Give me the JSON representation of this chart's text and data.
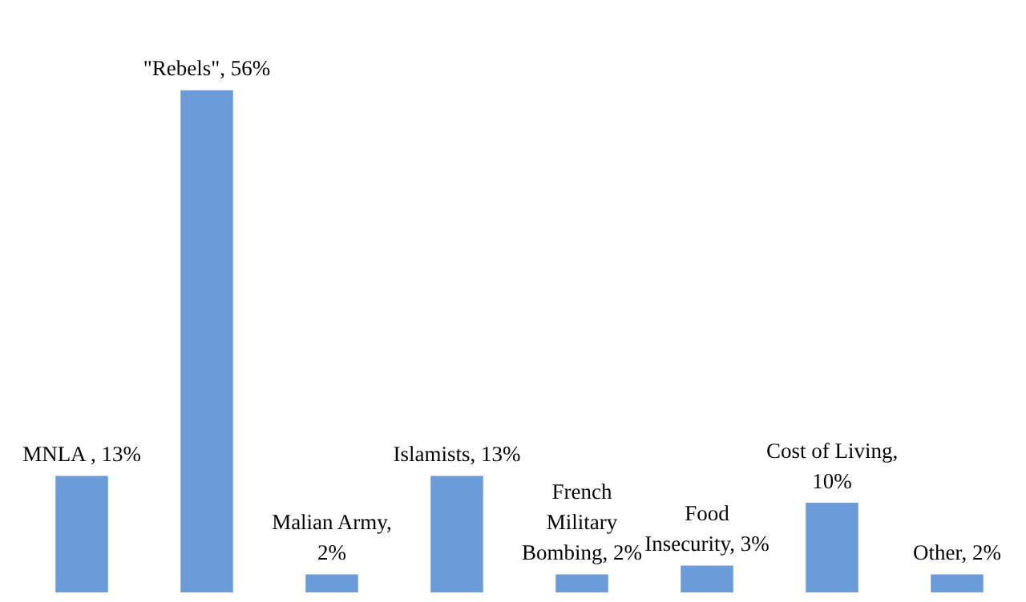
{
  "chart_data": {
    "type": "bar",
    "categories": [
      null,
      null,
      null,
      null,
      null,
      null,
      null,
      null
    ],
    "values": [
      13,
      56,
      2,
      13,
      2,
      3,
      10,
      2
    ],
    "value_labels": [
      "MNLA , 13%",
      "\"Rebels\", 56%",
      "Malian Army,\n2%",
      "Islamists, 13%",
      "French\nMilitary\nBombing, 2%",
      "Food\nInsecurity, 3%",
      "Cost of Living,\n10%",
      "Other, 2%"
    ],
    "color": "#6b9bd8",
    "tick_labels": false
  }
}
